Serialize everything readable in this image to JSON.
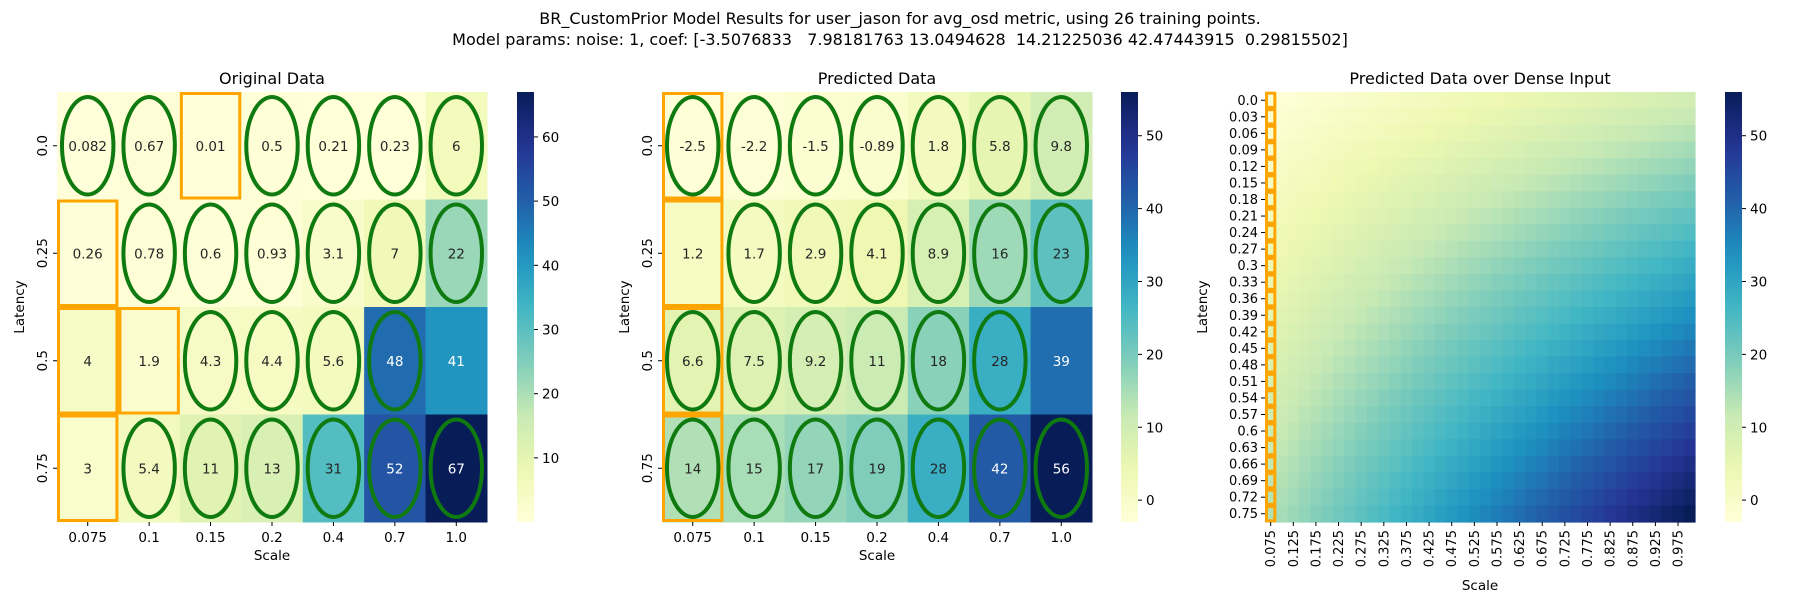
{
  "figure": {
    "suptitle_line1": "BR_CustomPrior Model Results for user_jason for avg_osd metric, using 26 training points.",
    "suptitle_line2": "Model params: noise: 1, coef: [-3.5076833   7.98181763 13.0494628  14.21225036 42.47443915  0.29815502]"
  },
  "colors": {
    "colormap": "YlGnBu",
    "circle": "#0f7a0f",
    "rect": "#ffa500"
  },
  "chart_data": [
    {
      "type": "heatmap",
      "title": "Original Data",
      "xlabel": "Scale",
      "ylabel": "Latency",
      "x": [
        "0.075",
        "0.1",
        "0.15",
        "0.2",
        "0.4",
        "0.7",
        "1.0"
      ],
      "y": [
        "0.0",
        "0.25",
        "0.5",
        "0.75"
      ],
      "values": [
        [
          0.082,
          0.67,
          0.01,
          0.5,
          0.21,
          0.23,
          6
        ],
        [
          0.26,
          0.78,
          0.6,
          0.93,
          3.1,
          7,
          22
        ],
        [
          4,
          1.9,
          4.3,
          4.4,
          5.6,
          48,
          41
        ],
        [
          3,
          5.4,
          11,
          13,
          31,
          52,
          67
        ]
      ],
      "labels": [
        [
          "0.082",
          "0.67",
          "0.01",
          "0.5",
          "0.21",
          "0.23",
          "6"
        ],
        [
          "0.26",
          "0.78",
          "0.6",
          "0.93",
          "3.1",
          "7",
          "22"
        ],
        [
          "4",
          "1.9",
          "4.3",
          "4.4",
          "5.6",
          "48",
          "41"
        ],
        [
          "3",
          "5.4",
          "11",
          "13",
          "31",
          "52",
          "67"
        ]
      ],
      "vmin": 0.01,
      "vmax": 67,
      "colorbar_ticks": [
        10,
        20,
        30,
        40,
        50,
        60
      ],
      "circled": [
        [
          0,
          0
        ],
        [
          0,
          1
        ],
        [
          0,
          3
        ],
        [
          0,
          4
        ],
        [
          0,
          5
        ],
        [
          0,
          6
        ],
        [
          1,
          1
        ],
        [
          1,
          2
        ],
        [
          1,
          3
        ],
        [
          1,
          4
        ],
        [
          1,
          5
        ],
        [
          1,
          6
        ],
        [
          2,
          2
        ],
        [
          2,
          3
        ],
        [
          2,
          4
        ],
        [
          2,
          5
        ],
        [
          3,
          1
        ],
        [
          3,
          2
        ],
        [
          3,
          3
        ],
        [
          3,
          4
        ],
        [
          3,
          5
        ],
        [
          3,
          6
        ]
      ],
      "boxed": [
        [
          0,
          2
        ],
        [
          1,
          0
        ],
        [
          2,
          0
        ],
        [
          2,
          1
        ],
        [
          3,
          0
        ]
      ]
    },
    {
      "type": "heatmap",
      "title": "Predicted Data",
      "xlabel": "Scale",
      "ylabel": "Latency",
      "x": [
        "0.075",
        "0.1",
        "0.15",
        "0.2",
        "0.4",
        "0.7",
        "1.0"
      ],
      "y": [
        "0.0",
        "0.25",
        "0.5",
        "0.75"
      ],
      "values": [
        [
          -2.5,
          -2.2,
          -1.5,
          -0.89,
          1.8,
          5.8,
          9.8
        ],
        [
          1.2,
          1.7,
          2.9,
          4.1,
          8.9,
          16,
          23
        ],
        [
          6.6,
          7.5,
          9.2,
          11,
          18,
          28,
          39
        ],
        [
          14,
          15,
          17,
          19,
          28,
          42,
          56
        ]
      ],
      "labels": [
        [
          "-2.5",
          "-2.2",
          "-1.5",
          "-0.89",
          "1.8",
          "5.8",
          "9.8"
        ],
        [
          "1.2",
          "1.7",
          "2.9",
          "4.1",
          "8.9",
          "16",
          "23"
        ],
        [
          "6.6",
          "7.5",
          "9.2",
          "11",
          "18",
          "28",
          "39"
        ],
        [
          "14",
          "15",
          "17",
          "19",
          "28",
          "42",
          "56"
        ]
      ],
      "vmin": -3,
      "vmax": 56,
      "colorbar_ticks": [
        0,
        10,
        20,
        30,
        40,
        50
      ],
      "circled": [
        [
          0,
          0
        ],
        [
          0,
          1
        ],
        [
          0,
          2
        ],
        [
          0,
          3
        ],
        [
          0,
          4
        ],
        [
          0,
          5
        ],
        [
          0,
          6
        ],
        [
          1,
          1
        ],
        [
          1,
          2
        ],
        [
          1,
          3
        ],
        [
          1,
          4
        ],
        [
          1,
          5
        ],
        [
          1,
          6
        ],
        [
          2,
          0
        ],
        [
          2,
          1
        ],
        [
          2,
          2
        ],
        [
          2,
          3
        ],
        [
          2,
          4
        ],
        [
          2,
          5
        ],
        [
          3,
          0
        ],
        [
          3,
          1
        ],
        [
          3,
          2
        ],
        [
          3,
          3
        ],
        [
          3,
          4
        ],
        [
          3,
          5
        ],
        [
          3,
          6
        ]
      ],
      "boxed": [
        [
          0,
          0
        ],
        [
          1,
          0
        ],
        [
          2,
          0
        ],
        [
          3,
          0
        ]
      ]
    },
    {
      "type": "heatmap",
      "title": "Predicted Data over Dense Input",
      "xlabel": "Scale",
      "ylabel": "Latency",
      "x": [
        "0.075",
        "0.125",
        "0.175",
        "0.225",
        "0.275",
        "0.325",
        "0.375",
        "0.425",
        "0.475",
        "0.525",
        "0.575",
        "0.625",
        "0.675",
        "0.725",
        "0.775",
        "0.825",
        "0.875",
        "0.925",
        "0.975"
      ],
      "y": [
        "0.0",
        "0.03",
        "0.06",
        "0.09",
        "0.12",
        "0.15",
        "0.18",
        "0.21",
        "0.24",
        "0.27",
        "0.3",
        "0.33",
        "0.36",
        "0.39",
        "0.42",
        "0.45",
        "0.48",
        "0.51",
        "0.54",
        "0.57",
        "0.6",
        "0.63",
        "0.66",
        "0.69",
        "0.72",
        "0.75"
      ],
      "vmin": -3,
      "vmax": 56,
      "corner_values": {
        "top_left": -2.5,
        "top_right": 9.8,
        "bottom_left": 14,
        "bottom_right": 56
      },
      "colorbar_ticks": [
        0,
        10,
        20,
        30,
        40,
        50
      ],
      "boxed_column": "0.075"
    }
  ]
}
